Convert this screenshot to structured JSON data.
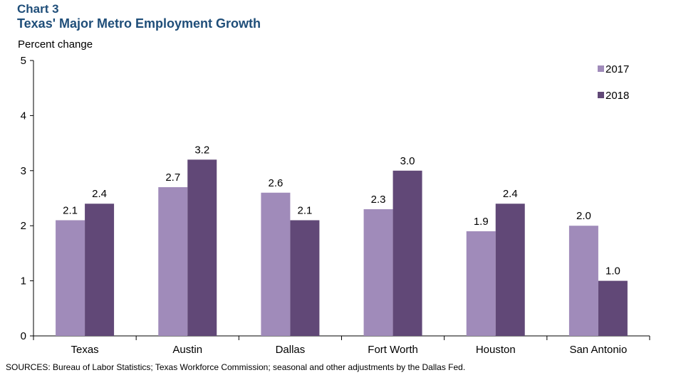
{
  "header": {
    "chart_number": "Chart 3",
    "title": "Texas' Major Metro Employment Growth"
  },
  "footer": {
    "source": "SOURCES: Bureau  of  Labor Statistics; Texas Workforce Commission; seasonal and other adjustments by the Dallas Fed."
  },
  "colors": {
    "series_2017": "#a08bba",
    "series_2018": "#614877"
  },
  "chart_data": {
    "type": "bar",
    "title": "Texas' Major Metro Employment Growth",
    "ylabel": "Percent change",
    "xlabel": "",
    "categories": [
      "Texas",
      "Austin",
      "Dallas",
      "Fort Worth",
      "Houston",
      "San Antonio"
    ],
    "series": [
      {
        "name": "2017",
        "values": [
          2.1,
          2.7,
          2.6,
          2.3,
          1.9,
          2.0
        ],
        "labels": [
          "2.1",
          "2.7",
          "2.6",
          "2.3",
          "1.9",
          "2.0"
        ]
      },
      {
        "name": "2018",
        "values": [
          2.4,
          3.2,
          2.1,
          3.0,
          2.4,
          1.0
        ],
        "labels": [
          "2.4",
          "3.2",
          "2.1",
          "3.0",
          "2.4",
          "1.0"
        ]
      }
    ],
    "ylim": [
      0,
      5
    ],
    "yticks": [
      "0",
      "1",
      "2",
      "3",
      "4",
      "5"
    ],
    "legend": "top-right",
    "grid": false
  }
}
